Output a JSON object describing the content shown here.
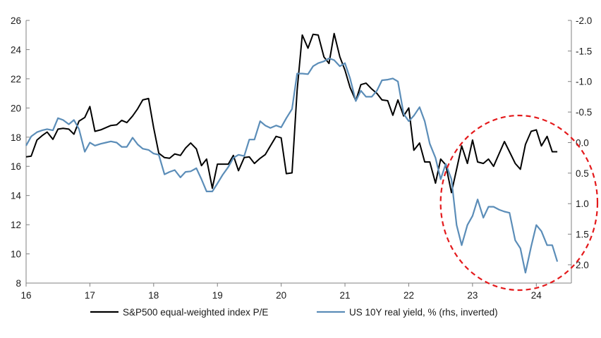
{
  "chart_data": {
    "type": "line",
    "title": "",
    "xlabel": "",
    "ylabel": "",
    "x_range": [
      16,
      24.55
    ],
    "x_ticks": [
      16,
      17,
      18,
      19,
      20,
      21,
      22,
      23,
      24
    ],
    "x_tick_labels": [
      "16",
      "17",
      "18",
      "19",
      "20",
      "21",
      "22",
      "23",
      "24"
    ],
    "ylim_left": [
      8,
      26
    ],
    "y_ticks_left": [
      8,
      10,
      12,
      14,
      16,
      18,
      20,
      22,
      24,
      26
    ],
    "y_tick_labels_left": [
      "8",
      "10",
      "12",
      "14",
      "16",
      "18",
      "20",
      "22",
      "24",
      "26"
    ],
    "ylim_right_inverted": [
      2.3,
      -2.0
    ],
    "y_ticks_right": [
      -2.0,
      -1.5,
      -1.0,
      -0.5,
      0.0,
      0.5,
      1.0,
      1.5,
      2.0
    ],
    "y_tick_labels_right": [
      "-2.0",
      "-1.5",
      "-1.0",
      "-0.5",
      "0.0",
      "0.5",
      "1.0",
      "1.5",
      "2.0"
    ],
    "series": [
      {
        "name": "S&P500 equal-weighted index P/E",
        "axis": "left",
        "color": "#000000",
        "x": [
          16.0,
          16.08,
          16.17,
          16.25,
          16.33,
          16.42,
          16.5,
          16.58,
          16.67,
          16.75,
          16.83,
          16.92,
          17.0,
          17.08,
          17.17,
          17.25,
          17.33,
          17.42,
          17.5,
          17.58,
          17.67,
          17.75,
          17.83,
          17.92,
          18.0,
          18.08,
          18.17,
          18.25,
          18.33,
          18.42,
          18.5,
          18.58,
          18.67,
          18.75,
          18.83,
          18.92,
          19.0,
          19.08,
          19.17,
          19.25,
          19.33,
          19.42,
          19.5,
          19.58,
          19.67,
          19.75,
          19.83,
          19.92,
          20.0,
          20.08,
          20.17,
          20.25,
          20.33,
          20.42,
          20.5,
          20.58,
          20.67,
          20.75,
          20.83,
          20.92,
          21.0,
          21.08,
          21.17,
          21.25,
          21.33,
          21.42,
          21.5,
          21.58,
          21.67,
          21.75,
          21.83,
          21.92,
          22.0,
          22.08,
          22.17,
          22.25,
          22.33,
          22.42,
          22.5,
          22.58,
          22.67,
          22.75,
          22.83,
          22.92,
          23.0,
          23.08,
          23.17,
          23.25,
          23.33,
          23.42,
          23.5,
          23.58,
          23.67,
          23.75,
          23.83,
          23.92,
          24.0,
          24.08,
          24.17,
          24.25,
          24.33
        ],
        "y": [
          16.65,
          16.7,
          17.8,
          18.1,
          18.35,
          17.85,
          18.55,
          18.6,
          18.55,
          18.2,
          19.1,
          19.35,
          20.1,
          18.4,
          18.5,
          18.65,
          18.8,
          18.85,
          19.15,
          19.0,
          19.45,
          19.95,
          20.55,
          20.65,
          18.65,
          16.9,
          16.6,
          16.55,
          16.85,
          16.75,
          17.25,
          17.6,
          17.2,
          16.05,
          16.5,
          14.5,
          16.15,
          16.15,
          16.15,
          16.75,
          15.7,
          16.6,
          16.65,
          16.2,
          16.55,
          16.8,
          17.4,
          18.05,
          17.95,
          15.5,
          15.55,
          21.2,
          25.0,
          24.1,
          25.05,
          25.0,
          23.5,
          23.05,
          25.1,
          23.5,
          22.6,
          21.4,
          20.5,
          21.6,
          21.7,
          21.3,
          21.0,
          20.55,
          20.5,
          19.5,
          20.55,
          19.45,
          20.0,
          17.1,
          17.6,
          16.3,
          16.3,
          14.85,
          16.5,
          16.1,
          14.2,
          15.8,
          17.4,
          16.2,
          17.8,
          16.3,
          16.2,
          16.5,
          16.0,
          16.9,
          17.7,
          17.0,
          16.2,
          15.8,
          17.5,
          18.4,
          18.5,
          17.4,
          18.05,
          17.0,
          17.0
        ]
      },
      {
        "name": "US 10Y real yield, % (rhs, inverted)",
        "axis": "right",
        "color": "#5b8db8",
        "x": [
          16.0,
          16.08,
          16.17,
          16.25,
          16.33,
          16.42,
          16.5,
          16.58,
          16.67,
          16.75,
          16.83,
          16.92,
          17.0,
          17.08,
          17.17,
          17.25,
          17.33,
          17.42,
          17.5,
          17.58,
          17.67,
          17.75,
          17.83,
          17.92,
          18.0,
          18.08,
          18.17,
          18.25,
          18.33,
          18.42,
          18.5,
          18.58,
          18.67,
          18.75,
          18.83,
          18.92,
          19.0,
          19.08,
          19.17,
          19.25,
          19.33,
          19.42,
          19.5,
          19.58,
          19.67,
          19.75,
          19.83,
          19.92,
          20.0,
          20.08,
          20.17,
          20.25,
          20.33,
          20.42,
          20.5,
          20.58,
          20.67,
          20.75,
          20.83,
          20.92,
          21.0,
          21.08,
          21.17,
          21.25,
          21.33,
          21.42,
          21.5,
          21.58,
          21.67,
          21.75,
          21.83,
          21.92,
          22.0,
          22.08,
          22.17,
          22.25,
          22.33,
          22.42,
          22.5,
          22.58,
          22.67,
          22.75,
          22.83,
          22.92,
          23.0,
          23.08,
          23.17,
          23.25,
          23.33,
          23.42,
          23.5,
          23.58,
          23.67,
          23.75,
          23.83,
          23.92,
          24.0,
          24.08,
          24.17,
          24.25,
          24.33
        ],
        "y": [
          0.05,
          -0.1,
          -0.17,
          -0.2,
          -0.22,
          -0.2,
          -0.4,
          -0.37,
          -0.3,
          -0.37,
          -0.22,
          0.15,
          0.0,
          0.05,
          0.02,
          0.0,
          -0.02,
          0.0,
          0.07,
          0.07,
          -0.08,
          0.03,
          0.1,
          0.12,
          0.18,
          0.2,
          0.52,
          0.48,
          0.45,
          0.57,
          0.48,
          0.47,
          0.42,
          0.6,
          0.8,
          0.8,
          0.67,
          0.53,
          0.4,
          0.25,
          0.2,
          0.22,
          -0.05,
          -0.05,
          -0.35,
          -0.28,
          -0.24,
          -0.28,
          -0.25,
          -0.4,
          -0.55,
          -1.13,
          -1.13,
          -1.12,
          -1.25,
          -1.3,
          -1.33,
          -1.38,
          -1.35,
          -1.25,
          -1.3,
          -1.05,
          -0.68,
          -0.85,
          -0.75,
          -0.75,
          -0.85,
          -1.02,
          -1.03,
          -1.05,
          -1.0,
          -0.47,
          -0.35,
          -0.44,
          -0.58,
          -0.35,
          0.02,
          0.25,
          0.6,
          0.35,
          0.6,
          1.35,
          1.68,
          1.35,
          1.2,
          0.93,
          1.23,
          1.05,
          1.05,
          1.1,
          1.13,
          1.15,
          1.6,
          1.73,
          2.13,
          1.7,
          1.35,
          1.45,
          1.68,
          1.68,
          1.95
        ]
      }
    ],
    "legend": {
      "placement": "bottom",
      "entries": [
        "S&P500 equal-weighted index P/E",
        "US 10Y real yield, % (rhs, inverted)"
      ]
    },
    "annotation": {
      "type": "dashed-ellipse",
      "color": "#e41a1c",
      "description_region_x": [
        22.5,
        24.55
      ]
    }
  }
}
